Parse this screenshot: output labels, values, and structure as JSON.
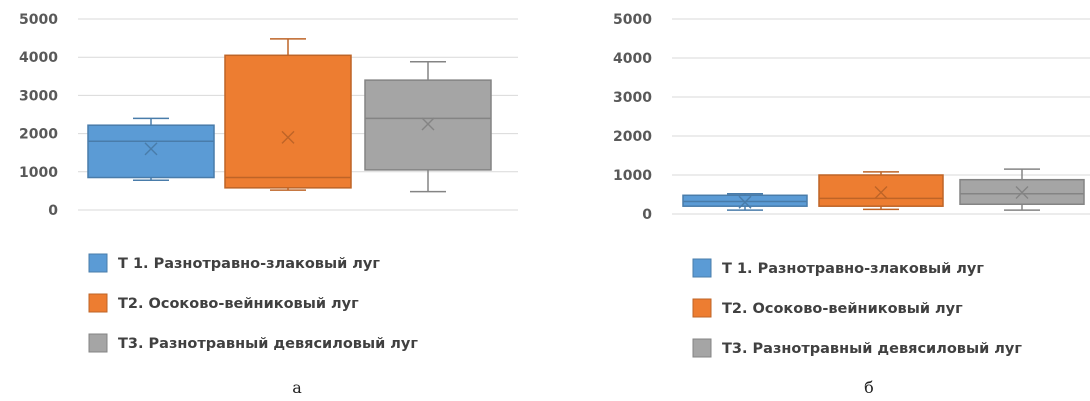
{
  "chart_data": [
    {
      "type": "box",
      "panel_label": "а",
      "ylim": [
        0,
        5000
      ],
      "yticks": [
        "0",
        "1000",
        "2000",
        "3000",
        "4000",
        "5000"
      ],
      "grid": true,
      "legend_position": "bottom",
      "series": [
        {
          "name": "Т 1. Разнотравно-злаковый луг",
          "color": "#5B9BD5",
          "min": 780,
          "q1": 850,
          "median": 1800,
          "q3": 2220,
          "max": 2400,
          "mean": 1600
        },
        {
          "name": "Т2. Осоково-вейниковый луг",
          "color": "#ED7D31",
          "min": 520,
          "q1": 580,
          "median": 850,
          "q3": 4050,
          "max": 4480,
          "mean": 1900
        },
        {
          "name": "Т3. Разнотравный девясиловый луг",
          "color": "#A5A5A5",
          "min": 480,
          "q1": 1050,
          "median": 2400,
          "q3": 3400,
          "max": 3880,
          "mean": 2250
        }
      ]
    },
    {
      "type": "box",
      "panel_label": "б",
      "ylim": [
        0,
        5000
      ],
      "yticks": [
        "0",
        "1000",
        "2000",
        "3000",
        "4000",
        "5000"
      ],
      "grid": true,
      "legend_position": "bottom",
      "series": [
        {
          "name": "Т 1. Разнотравно-злаковый луг",
          "color": "#5B9BD5",
          "min": 100,
          "q1": 200,
          "median": 320,
          "q3": 480,
          "max": 520,
          "mean": 300
        },
        {
          "name": "Т2. Осоково-вейниковый луг",
          "color": "#ED7D31",
          "min": 120,
          "q1": 200,
          "median": 400,
          "q3": 1000,
          "max": 1080,
          "mean": 550
        },
        {
          "name": "Т3. Разнотравный девясиловый луг",
          "color": "#A5A5A5",
          "min": 100,
          "q1": 250,
          "median": 520,
          "q3": 880,
          "max": 1150,
          "mean": 550
        }
      ]
    }
  ]
}
